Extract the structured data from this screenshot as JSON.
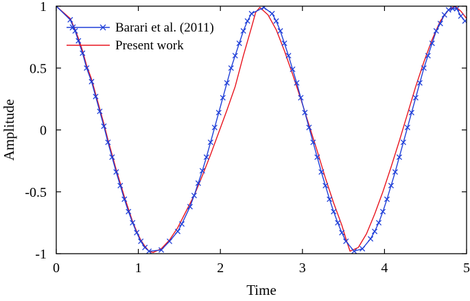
{
  "chart_data": {
    "type": "line",
    "title": "",
    "xlabel": "Time",
    "ylabel": "Amplitude",
    "xlim": [
      0,
      5
    ],
    "ylim": [
      -1,
      1
    ],
    "x_ticks": [
      "0",
      "1",
      "2",
      "3",
      "4",
      "5"
    ],
    "y_ticks": [
      "-1",
      "-0.5",
      "0",
      "0.5",
      "1"
    ],
    "grid": false,
    "legend_position": "top-left",
    "series": [
      {
        "name": "Barari et al. (2011)",
        "color": "#1f3fd8",
        "marker": "x",
        "x": [
          0,
          0.17,
          0.23,
          0.27,
          0.32,
          0.37,
          0.43,
          0.48,
          0.53,
          0.58,
          0.63,
          0.68,
          0.73,
          0.78,
          0.83,
          0.88,
          0.93,
          0.98,
          1.03,
          1.08,
          1.13,
          1.28,
          1.38,
          1.48,
          1.53,
          1.63,
          1.68,
          1.73,
          1.78,
          1.83,
          1.88,
          1.93,
          1.98,
          2.03,
          2.08,
          2.13,
          2.18,
          2.23,
          2.28,
          2.33,
          2.38,
          2.53,
          2.63,
          2.68,
          2.73,
          2.78,
          2.83,
          2.88,
          2.93,
          2.98,
          3.03,
          3.08,
          3.13,
          3.18,
          3.23,
          3.28,
          3.33,
          3.38,
          3.43,
          3.48,
          3.53,
          3.63,
          3.73,
          3.83,
          3.88,
          3.93,
          3.98,
          4.03,
          4.08,
          4.13,
          4.18,
          4.23,
          4.28,
          4.33,
          4.38,
          4.43,
          4.48,
          4.53,
          4.58,
          4.63,
          4.68,
          4.73,
          4.78,
          4.83,
          4.88,
          4.93,
          4.98
        ],
        "y": [
          1.0,
          0.89,
          0.8,
          0.72,
          0.62,
          0.5,
          0.39,
          0.27,
          0.15,
          0.03,
          -0.1,
          -0.22,
          -0.34,
          -0.45,
          -0.56,
          -0.66,
          -0.75,
          -0.83,
          -0.9,
          -0.95,
          -0.98,
          -0.97,
          -0.9,
          -0.82,
          -0.76,
          -0.62,
          -0.53,
          -0.43,
          -0.33,
          -0.22,
          -0.1,
          0.02,
          0.14,
          0.26,
          0.38,
          0.5,
          0.6,
          0.7,
          0.8,
          0.88,
          0.94,
          0.99,
          0.94,
          0.88,
          0.8,
          0.7,
          0.6,
          0.49,
          0.38,
          0.26,
          0.14,
          0.02,
          -0.1,
          -0.22,
          -0.34,
          -0.45,
          -0.56,
          -0.66,
          -0.75,
          -0.83,
          -0.9,
          -0.98,
          -0.96,
          -0.88,
          -0.82,
          -0.75,
          -0.66,
          -0.56,
          -0.45,
          -0.34,
          -0.22,
          -0.1,
          0.02,
          0.14,
          0.26,
          0.38,
          0.5,
          0.6,
          0.7,
          0.8,
          0.86,
          0.93,
          0.97,
          0.98,
          0.98,
          0.92,
          0.88
        ]
      },
      {
        "name": "Present work",
        "color": "#e8141e",
        "marker": "none",
        "x": [
          0,
          0.17,
          0.23,
          0.27,
          0.32,
          0.37,
          0.43,
          0.48,
          0.53,
          0.58,
          0.63,
          0.68,
          0.73,
          0.78,
          0.83,
          0.88,
          0.93,
          0.98,
          1.03,
          1.08,
          1.13,
          1.18,
          1.28,
          1.38,
          1.48,
          1.58,
          1.68,
          1.78,
          1.88,
          1.98,
          2.08,
          2.18,
          2.28,
          2.38,
          2.43,
          2.48,
          2.58,
          2.68,
          2.78,
          2.88,
          2.98,
          3.08,
          3.18,
          3.28,
          3.38,
          3.48,
          3.53,
          3.58,
          3.68,
          3.78,
          3.88,
          3.98,
          4.08,
          4.18,
          4.28,
          4.38,
          4.48,
          4.58,
          4.68,
          4.78,
          4.86,
          4.93,
          5.0
        ],
        "y": [
          1.0,
          0.9,
          0.81,
          0.74,
          0.64,
          0.52,
          0.41,
          0.29,
          0.17,
          0.05,
          -0.08,
          -0.2,
          -0.32,
          -0.43,
          -0.54,
          -0.64,
          -0.74,
          -0.82,
          -0.89,
          -0.94,
          -0.98,
          -0.99,
          -0.96,
          -0.89,
          -0.79,
          -0.66,
          -0.53,
          -0.37,
          -0.2,
          -0.02,
          0.16,
          0.35,
          0.6,
          0.83,
          0.95,
          0.99,
          0.93,
          0.81,
          0.64,
          0.45,
          0.25,
          0.04,
          -0.17,
          -0.39,
          -0.59,
          -0.77,
          -0.88,
          -0.98,
          -0.95,
          -0.84,
          -0.68,
          -0.5,
          -0.3,
          -0.09,
          0.13,
          0.35,
          0.55,
          0.73,
          0.88,
          0.97,
          1.0,
          0.96,
          0.9
        ]
      }
    ]
  }
}
